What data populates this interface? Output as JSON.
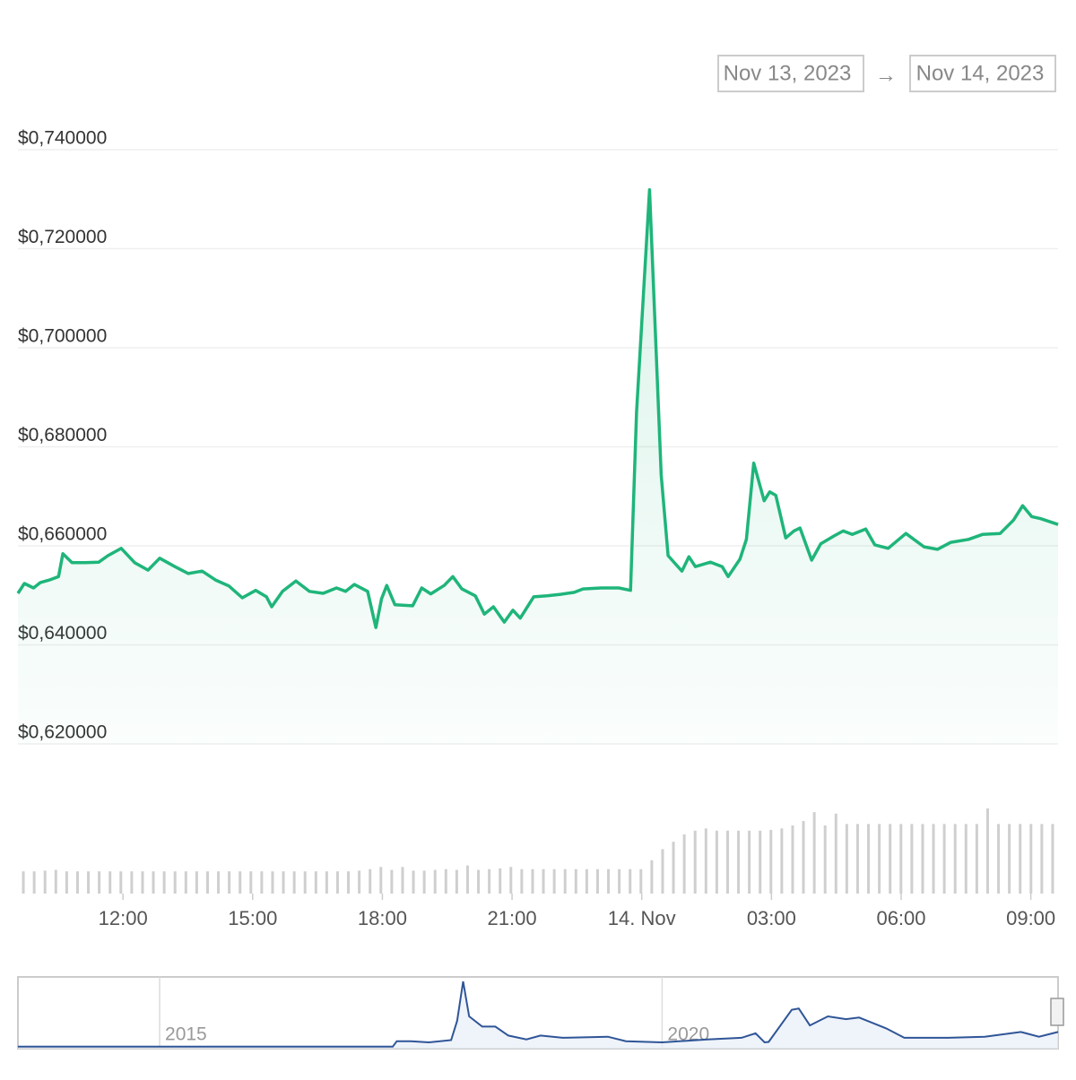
{
  "range_selector": {
    "from": "Nov 13, 2023",
    "separator": "→",
    "to": "Nov 14, 2023"
  },
  "chart_data": [
    {
      "type": "area",
      "color": "#1fb57a",
      "grid": true,
      "x": [
        9.57,
        9.72,
        9.93,
        10.09,
        10.3,
        10.51,
        10.61,
        10.82,
        11.13,
        11.44,
        11.65,
        11.96,
        12.27,
        12.58,
        12.85,
        13.2,
        13.51,
        13.83,
        14.14,
        14.45,
        14.76,
        15.07,
        15.32,
        15.44,
        15.69,
        16.0,
        16.31,
        16.63,
        16.94,
        17.15,
        17.35,
        17.66,
        17.85,
        17.98,
        18.1,
        18.29,
        18.7,
        18.91,
        19.12,
        19.43,
        19.63,
        19.84,
        20.15,
        20.36,
        20.57,
        20.82,
        21.02,
        21.19,
        21.5,
        21.81,
        22.12,
        22.44,
        22.64,
        23.06,
        23.47,
        23.74,
        23.88,
        24.18,
        24.45,
        24.61,
        24.93,
        25.09,
        25.24,
        25.59,
        25.86,
        26.0,
        26.27,
        26.42,
        26.59,
        26.83,
        26.96,
        27.1,
        27.33,
        27.52,
        27.66,
        27.93,
        28.14,
        28.45,
        28.66,
        28.87,
        29.18,
        29.39,
        29.7,
        30.11,
        30.53,
        30.84,
        31.15,
        31.56,
        31.88,
        32.29,
        32.6,
        32.81,
        33.02,
        33.22,
        33.43,
        33.63
      ],
      "values": [
        0.6504,
        0.6524,
        0.6515,
        0.6526,
        0.6531,
        0.6538,
        0.6584,
        0.6566,
        0.6566,
        0.6567,
        0.658,
        0.6595,
        0.6566,
        0.6551,
        0.6575,
        0.6558,
        0.6544,
        0.6549,
        0.6531,
        0.6519,
        0.6495,
        0.651,
        0.6497,
        0.6477,
        0.6508,
        0.6529,
        0.6508,
        0.6504,
        0.6515,
        0.6508,
        0.6522,
        0.6508,
        0.6435,
        0.6493,
        0.652,
        0.6481,
        0.6479,
        0.6515,
        0.6503,
        0.652,
        0.6538,
        0.6513,
        0.6499,
        0.6462,
        0.6477,
        0.6446,
        0.647,
        0.6454,
        0.6497,
        0.6499,
        0.6502,
        0.6506,
        0.6513,
        0.6515,
        0.6515,
        0.651,
        0.687,
        0.7319,
        0.6743,
        0.658,
        0.6549,
        0.6578,
        0.6558,
        0.6567,
        0.6558,
        0.6538,
        0.6573,
        0.6613,
        0.6767,
        0.6691,
        0.6709,
        0.6702,
        0.6616,
        0.663,
        0.6636,
        0.6571,
        0.6604,
        0.662,
        0.663,
        0.6623,
        0.6634,
        0.6602,
        0.6595,
        0.6625,
        0.6598,
        0.6593,
        0.6607,
        0.6613,
        0.6623,
        0.6625,
        0.6652,
        0.6681,
        0.6659,
        0.6655,
        0.6649,
        0.6643
      ],
      "xlim": [
        9.57,
        33.63
      ],
      "xticks": [
        {
          "value": 12,
          "label": "12:00"
        },
        {
          "value": 15,
          "label": "15:00"
        },
        {
          "value": 18,
          "label": "18:00"
        },
        {
          "value": 21,
          "label": "21:00"
        },
        {
          "value": 24,
          "label": "14. Nov"
        },
        {
          "value": 27,
          "label": "03:00"
        },
        {
          "value": 30,
          "label": "06:00"
        },
        {
          "value": 33,
          "label": "09:00"
        }
      ],
      "ylim": [
        0.62,
        0.74
      ],
      "yticks": [
        {
          "value": 0.62,
          "label": "$0,620000"
        },
        {
          "value": 0.64,
          "label": "$0,640000"
        },
        {
          "value": 0.66,
          "label": "$0,660000"
        },
        {
          "value": 0.68,
          "label": "$0,680000"
        },
        {
          "value": 0.7,
          "label": "$0,700000"
        },
        {
          "value": 0.72,
          "label": "$0,720000"
        },
        {
          "value": 0.74,
          "label": "$0,740000"
        }
      ]
    },
    {
      "type": "bar",
      "color": "#cfcfcf",
      "values": [
        30,
        30,
        31,
        32,
        30,
        30,
        30,
        30,
        30,
        30,
        30,
        30,
        30,
        30,
        30,
        30,
        30,
        30,
        30,
        30,
        30,
        30,
        30,
        30,
        30,
        30,
        30,
        30,
        30,
        30,
        30,
        31,
        33,
        36,
        32,
        36,
        31,
        31,
        32,
        33,
        32,
        38,
        32,
        33,
        34,
        36,
        33,
        33,
        33,
        33,
        33,
        33,
        33,
        33,
        33,
        33,
        33,
        33,
        45,
        60,
        70,
        80,
        85,
        88,
        85,
        85,
        85,
        85,
        85,
        86,
        88,
        92,
        98,
        110,
        92,
        108,
        94,
        94,
        94,
        94,
        94,
        94,
        94,
        94,
        94,
        94,
        94,
        94,
        94,
        115,
        94,
        94,
        94,
        94,
        94,
        94
      ]
    },
    {
      "type": "line",
      "color": "#2f5597",
      "x": [
        2013.59,
        2015.0,
        2017.32,
        2017.36,
        2017.5,
        2017.68,
        2017.9,
        2017.96,
        2018.02,
        2018.08,
        2018.21,
        2018.34,
        2018.47,
        2018.65,
        2018.79,
        2019.01,
        2019.46,
        2019.64,
        2020.0,
        2020.45,
        2020.79,
        2020.93,
        2021.02,
        2021.06,
        2021.29,
        2021.36,
        2021.47,
        2021.65,
        2021.83,
        2021.96,
        2022.23,
        2022.41,
        2022.85,
        2023.21,
        2023.57,
        2023.75,
        2023.94
      ],
      "values": [
        0.006,
        0.006,
        0.006,
        0.25,
        0.25,
        0.2,
        0.3,
        1.15,
        2.9,
        1.35,
        0.9,
        0.9,
        0.5,
        0.33,
        0.5,
        0.4,
        0.45,
        0.25,
        0.2,
        0.33,
        0.4,
        0.6,
        0.2,
        0.22,
        1.64,
        1.7,
        0.95,
        1.35,
        1.23,
        1.3,
        0.82,
        0.4,
        0.4,
        0.45,
        0.66,
        0.45,
        0.66
      ],
      "xlim": [
        2013.59,
        2023.94
      ],
      "ylim": [
        0,
        3.1
      ],
      "xticks": [
        2015,
        2020
      ]
    }
  ]
}
